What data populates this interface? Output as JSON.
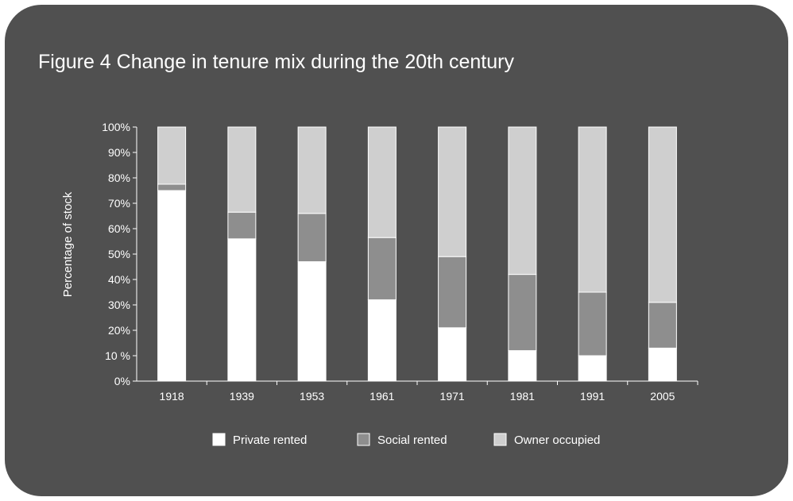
{
  "title": "Figure 4 Change in tenure mix during the 20th century",
  "chart_data": {
    "type": "bar",
    "stacked": true,
    "categories": [
      "1918",
      "1939",
      "1953",
      "1961",
      "1971",
      "1981",
      "1991",
      "2005"
    ],
    "series": [
      {
        "name": "Private rented",
        "values": [
          75,
          56,
          47,
          32,
          21,
          12,
          10,
          13
        ],
        "color": "#ffffff"
      },
      {
        "name": "Social rented",
        "values": [
          2.5,
          10.5,
          19,
          24.5,
          28,
          30,
          25,
          18
        ],
        "color": "#8e8e8e"
      },
      {
        "name": "Owner occupied",
        "values": [
          22.5,
          33.5,
          34,
          43.5,
          51,
          58,
          65,
          69
        ],
        "color": "#cfcfcf"
      }
    ],
    "ylabel": "Percentage of stock",
    "xlabel": "",
    "ylim": [
      0,
      100
    ],
    "yticks": [
      "0%",
      "10 %",
      "20%",
      "30%",
      "40%",
      "50%",
      "60%",
      "70%",
      "80%",
      "90%",
      "100%"
    ],
    "legend_position": "bottom",
    "grid": false
  }
}
